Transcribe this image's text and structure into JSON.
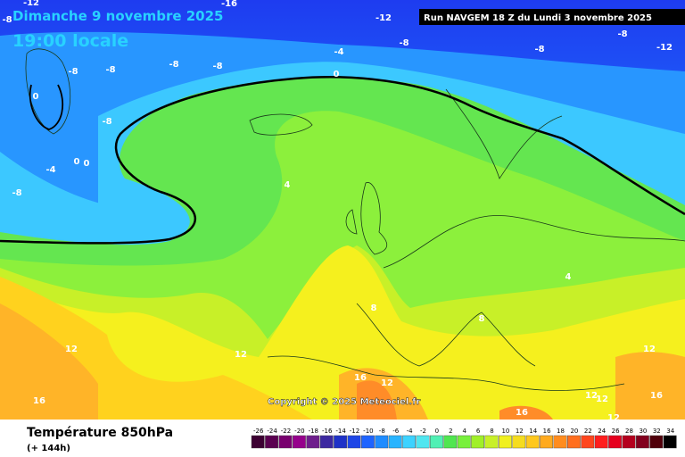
{
  "header": {
    "date": "Dimanche 9 novembre 2025",
    "time": "19:00 locale",
    "run": "Run NAVGEM 18 Z du Lundi 3 novembre 2025"
  },
  "copyright": "Copyright © 2025 Meteociel.fr",
  "footer": {
    "title": "Température 850hPa",
    "lead": "(+ 144h)"
  },
  "legend": {
    "labels": [
      -26,
      -24,
      -22,
      -20,
      -18,
      -16,
      -14,
      -12,
      -10,
      -8,
      -6,
      -4,
      -2,
      0,
      2,
      4,
      6,
      8,
      10,
      12,
      14,
      16,
      18,
      20,
      22,
      24,
      26,
      28,
      30,
      32,
      34
    ]
  },
  "contour_labels": [
    -12,
    -8,
    -16,
    -12,
    -8,
    -8,
    -12,
    -8,
    -4,
    -8,
    -8,
    -8,
    -8,
    0,
    -8,
    0,
    -4,
    0,
    0,
    -8,
    4,
    8,
    8,
    4,
    12,
    12,
    12,
    16,
    16,
    12,
    16,
    12,
    12,
    12,
    16
  ]
}
